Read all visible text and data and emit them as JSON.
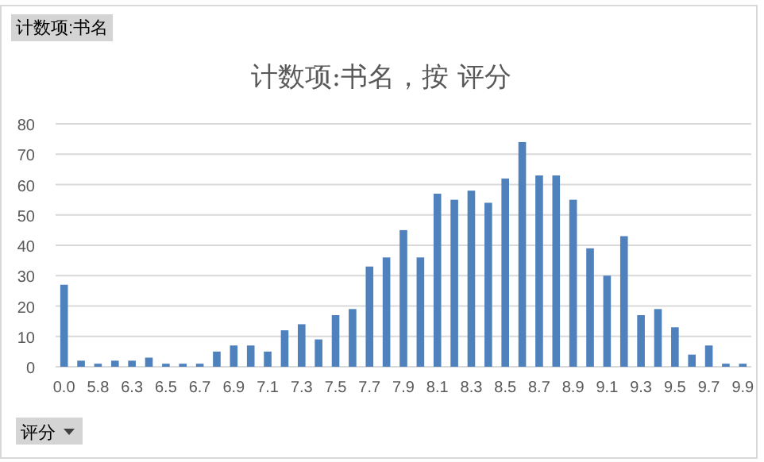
{
  "chart_data": {
    "type": "bar",
    "title": "计数项:书名，按 评分",
    "categories": [
      "0.0",
      null,
      "5.8",
      null,
      "6.3",
      null,
      "6.5",
      null,
      "6.7",
      null,
      "6.9",
      null,
      "7.1",
      null,
      "7.3",
      null,
      "7.5",
      null,
      "7.7",
      null,
      "7.9",
      null,
      "8.1",
      null,
      "8.3",
      null,
      "8.5",
      null,
      "8.7",
      null,
      "8.9",
      null,
      "9.1",
      null,
      "9.3",
      null,
      "9.5",
      null,
      "9.7",
      null,
      "9.9"
    ],
    "values": [
      27,
      2,
      1,
      2,
      2,
      3,
      1,
      1,
      1,
      5,
      7,
      7,
      5,
      12,
      14,
      9,
      17,
      19,
      33,
      36,
      45,
      36,
      57,
      55,
      58,
      54,
      62,
      74,
      63,
      63,
      55,
      39,
      30,
      43,
      17,
      19,
      13,
      4,
      7,
      1,
      1
    ],
    "color": "#4f81bd",
    "ylim": [
      0,
      80
    ],
    "yticks": [
      0,
      10,
      20,
      30,
      40,
      50,
      60,
      70,
      80
    ],
    "grid": "y",
    "annotations": [
      "计数项:书名",
      "评分"
    ]
  }
}
